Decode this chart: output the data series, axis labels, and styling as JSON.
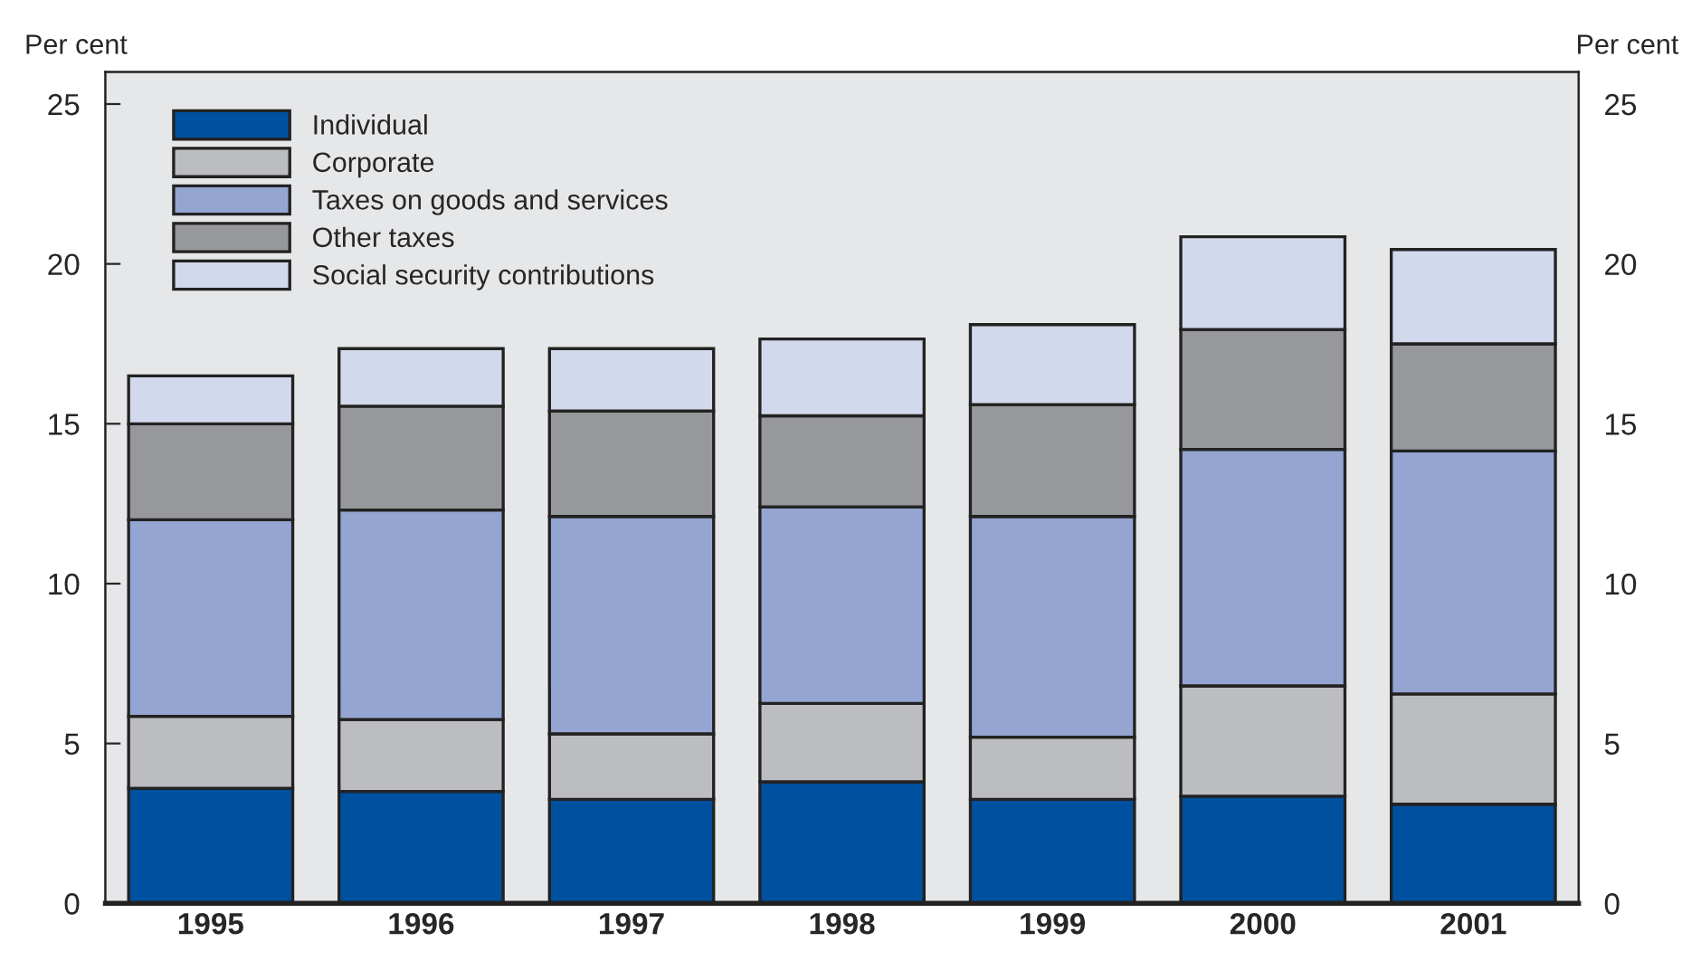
{
  "chart_data": {
    "type": "bar",
    "stacked": true,
    "ylabel": "Per cent",
    "y2label": "Per cent",
    "categories": [
      "1995",
      "1996",
      "1997",
      "1998",
      "1999",
      "2000",
      "2001"
    ],
    "series": [
      {
        "name": "Individual",
        "color": "#0050a0",
        "values": [
          3.6,
          3.5,
          3.25,
          3.8,
          3.25,
          3.35,
          3.1
        ]
      },
      {
        "name": "Corporate",
        "color": "#bcbdc1",
        "values": [
          2.25,
          2.25,
          2.05,
          2.45,
          1.95,
          3.45,
          3.45
        ]
      },
      {
        "name": "Taxes on goods and services",
        "color": "#95a5d1",
        "values": [
          6.15,
          6.55,
          6.8,
          6.15,
          6.9,
          7.4,
          7.6
        ]
      },
      {
        "name": "Other taxes",
        "color": "#97989b",
        "values": [
          3.0,
          3.25,
          3.3,
          2.85,
          3.5,
          3.75,
          3.35
        ]
      },
      {
        "name": "Social security contributions",
        "color": "#d3d9ec",
        "values": [
          1.5,
          1.8,
          1.95,
          2.4,
          2.5,
          2.9,
          2.95
        ]
      }
    ],
    "ylim": [
      0,
      26
    ],
    "yticks": [
      0,
      5,
      10,
      15,
      20,
      25
    ],
    "y2lim": [
      0,
      26
    ],
    "y2ticks": [
      0,
      5,
      10,
      15,
      20,
      25
    ],
    "grid": false,
    "legend": "top left"
  }
}
